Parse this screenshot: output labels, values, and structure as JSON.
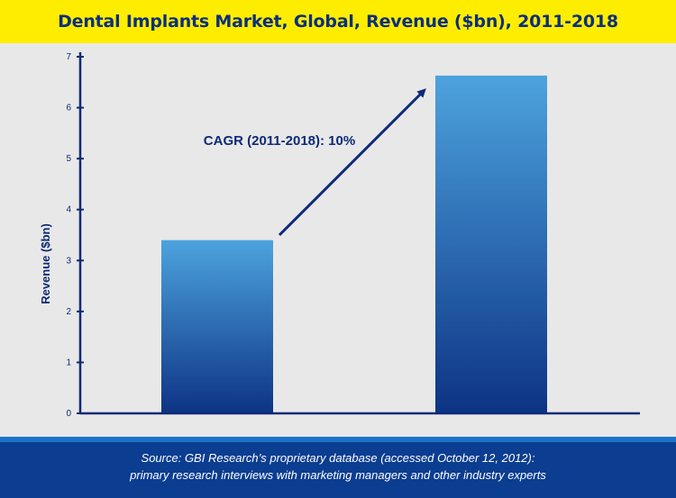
{
  "title": "Dental Implants Market, Global, Revenue ($bn), 2011-2018",
  "footer": {
    "line1": "Source: GBI Research’s proprietary database (accessed October 12, 2012):",
    "line2": "primary research interviews with marketing managers and other industry experts"
  },
  "colors": {
    "title_bg": "#ffed00",
    "title_text": "#0b2f7c",
    "bar_top": "#4da3de",
    "bar_bottom": "#0d3385",
    "axis": "#0d2a78",
    "footer_bg": "#0b3d91",
    "footer_stripe": "#1a73c9"
  },
  "chart_data": {
    "type": "bar",
    "title": "Dental Implants Market, Global, Revenue ($bn), 2011-2018",
    "ylabel": "Revenue ($bn)",
    "xlabel": "",
    "ylim": [
      0,
      7
    ],
    "yticks": [
      "0",
      "1",
      "2",
      "3",
      "4",
      "5",
      "6",
      "7"
    ],
    "values": [
      3.4,
      6.63
    ],
    "grid": false,
    "annotation": "CAGR (2011-2018): 10%"
  }
}
